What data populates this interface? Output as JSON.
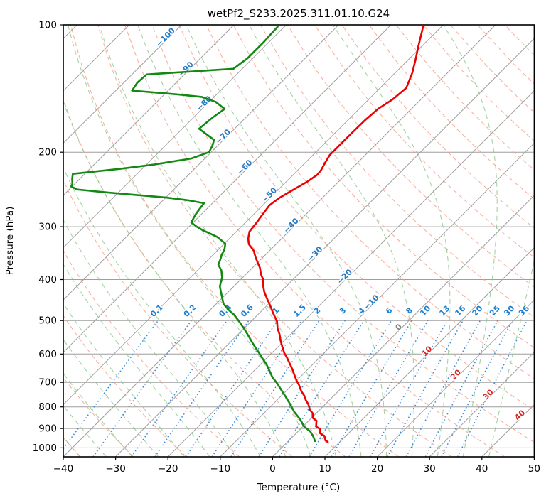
{
  "title": "wetPf2_S233.2025.311.01.10.G24",
  "axes": {
    "x_label": "Temperature (°C)",
    "y_label": "Pressure (hPa)",
    "x_tick_values": [
      -40,
      -30,
      -20,
      -10,
      0,
      10,
      20,
      30,
      40,
      50
    ],
    "x_tick_labels": [
      "−40",
      "−30",
      "−20",
      "−10",
      "0",
      "10",
      "20",
      "30",
      "40",
      "50"
    ],
    "y_tick_values": [
      100,
      200,
      300,
      400,
      500,
      600,
      700,
      800,
      900,
      1000
    ],
    "y_tick_labels": [
      "100",
      "200",
      "300",
      "400",
      "500",
      "600",
      "700",
      "800",
      "900",
      "1000"
    ],
    "x_range_c": [
      -40,
      50
    ],
    "p_range_hpa": [
      100,
      1050
    ],
    "skew_degrees": 45
  },
  "chart_data": {
    "type": "line",
    "plot_kind": "skew-t-log-p-sounding",
    "title": "wetPf2_S233.2025.311.01.10.G24",
    "xlabel": "Temperature (°C)",
    "ylabel": "Pressure (hPa)",
    "series": [
      {
        "name": "temperature",
        "color": "#ed0000",
        "units": {
          "pressure": "hPa",
          "temperature": "C"
        },
        "points": [
          [
            101,
            -53.5
          ],
          [
            113,
            -50.5
          ],
          [
            121,
            -48.6
          ],
          [
            130,
            -46.7
          ],
          [
            141,
            -45.0
          ],
          [
            150,
            -45.4
          ],
          [
            158,
            -46.4
          ],
          [
            168,
            -46.7
          ],
          [
            180,
            -46.8
          ],
          [
            192,
            -46.8
          ],
          [
            203,
            -46.8
          ],
          [
            212,
            -46.2
          ],
          [
            220,
            -45.6
          ],
          [
            226,
            -45.4
          ],
          [
            235,
            -46.0
          ],
          [
            245,
            -47.1
          ],
          [
            256,
            -48.2
          ],
          [
            267,
            -48.7
          ],
          [
            283,
            -48.2
          ],
          [
            295,
            -47.8
          ],
          [
            308,
            -47.5
          ],
          [
            320,
            -46.4
          ],
          [
            330,
            -45.2
          ],
          [
            342,
            -43.0
          ],
          [
            353,
            -41.6
          ],
          [
            364,
            -40.1
          ],
          [
            375,
            -38.6
          ],
          [
            389,
            -37.1
          ],
          [
            400,
            -35.7
          ],
          [
            412,
            -34.7
          ],
          [
            428,
            -33.1
          ],
          [
            443,
            -31.4
          ],
          [
            458,
            -29.7
          ],
          [
            480,
            -27.4
          ],
          [
            503,
            -25.0
          ],
          [
            522,
            -23.6
          ],
          [
            539,
            -22.1
          ],
          [
            559,
            -20.6
          ],
          [
            578,
            -19.1
          ],
          [
            597,
            -17.6
          ],
          [
            612,
            -16.2
          ],
          [
            634,
            -14.4
          ],
          [
            654,
            -12.8
          ],
          [
            671,
            -11.6
          ],
          [
            692,
            -10.1
          ],
          [
            710,
            -8.7
          ],
          [
            734,
            -7.1
          ],
          [
            752,
            -5.7
          ],
          [
            771,
            -4.5
          ],
          [
            789,
            -3.2
          ],
          [
            814,
            -1.8
          ],
          [
            828,
            -0.7
          ],
          [
            849,
            0.2
          ],
          [
            863,
            1.5
          ],
          [
            890,
            2.5
          ],
          [
            903,
            3.8
          ],
          [
            924,
            4.6
          ],
          [
            937,
            5.9
          ],
          [
            961,
            7.0
          ],
          [
            968,
            7.7
          ]
        ]
      },
      {
        "name": "dewpoint",
        "color": "#138813",
        "units": {
          "pressure": "hPa",
          "temperature": "C"
        },
        "points": [
          [
            101,
            -81.3
          ],
          [
            110,
            -81.0
          ],
          [
            120,
            -81.0
          ],
          [
            127,
            -81.7
          ],
          [
            131,
            -97.2
          ],
          [
            137,
            -97.4
          ],
          [
            143,
            -96.9
          ],
          [
            146,
            -87.4
          ],
          [
            148,
            -82.4
          ],
          [
            152,
            -78.8
          ],
          [
            158,
            -75.7
          ],
          [
            165,
            -76.3
          ],
          [
            171,
            -76.6
          ],
          [
            176,
            -76.8
          ],
          [
            181,
            -74.5
          ],
          [
            187,
            -71.8
          ],
          [
            193,
            -71.0
          ],
          [
            200,
            -70.4
          ],
          [
            207,
            -72.6
          ],
          [
            214,
            -78.6
          ],
          [
            219,
            -84.3
          ],
          [
            225,
            -92.3
          ],
          [
            231,
            -91.5
          ],
          [
            238,
            -90.4
          ],
          [
            241,
            -90.2
          ],
          [
            245,
            -88.5
          ],
          [
            249,
            -82.1
          ],
          [
            256,
            -69.9
          ],
          [
            260,
            -65.0
          ],
          [
            264,
            -61.6
          ],
          [
            271,
            -61.4
          ],
          [
            280,
            -61.1
          ],
          [
            293,
            -60.4
          ],
          [
            300,
            -58.5
          ],
          [
            306,
            -56.6
          ],
          [
            317,
            -52.7
          ],
          [
            329,
            -49.8
          ],
          [
            339,
            -48.9
          ],
          [
            349,
            -48.4
          ],
          [
            359,
            -47.7
          ],
          [
            369,
            -47.1
          ],
          [
            381,
            -45.4
          ],
          [
            396,
            -43.9
          ],
          [
            415,
            -42.7
          ],
          [
            433,
            -40.9
          ],
          [
            457,
            -38.6
          ],
          [
            474,
            -36.2
          ],
          [
            484,
            -34.6
          ],
          [
            505,
            -32.0
          ],
          [
            524,
            -29.8
          ],
          [
            543,
            -27.8
          ],
          [
            564,
            -25.7
          ],
          [
            581,
            -24.0
          ],
          [
            598,
            -22.3
          ],
          [
            612,
            -21.0
          ],
          [
            633,
            -19.0
          ],
          [
            654,
            -17.3
          ],
          [
            679,
            -15.4
          ],
          [
            706,
            -13.0
          ],
          [
            739,
            -10.4
          ],
          [
            762,
            -8.6
          ],
          [
            793,
            -6.4
          ],
          [
            823,
            -4.4
          ],
          [
            856,
            -1.9
          ],
          [
            890,
            0.2
          ],
          [
            914,
            2.3
          ],
          [
            935,
            3.6
          ],
          [
            950,
            4.4
          ],
          [
            964,
            5.1
          ]
        ]
      }
    ],
    "background": {
      "pressure_gridlines_hpa": [
        100,
        200,
        300,
        400,
        500,
        600,
        700,
        800,
        900,
        1000
      ],
      "isotherms": {
        "start_c": -140,
        "end_c": 50,
        "step_c": 10,
        "color": "#9e9e9e",
        "label_values": [
          -100,
          -90,
          -80,
          -70,
          -60,
          -50,
          -40,
          -30,
          -20,
          -10,
          0,
          10,
          20,
          30,
          40
        ],
        "label_color_negative": "#2b7bc4",
        "label_color_zero": "#808080",
        "label_color_positive": "#d62728"
      },
      "dry_adiabats": {
        "start_c": -40,
        "end_c": 190,
        "step_c": 10,
        "color": "#f5977f"
      },
      "moist_adiabats": {
        "start_c": -55,
        "end_c": 40,
        "step_c": 5,
        "color": "#8cc88c"
      },
      "mixing_ratio_lines": {
        "values_g_kg": [
          0.1,
          0.2,
          0.4,
          0.6,
          1,
          1.5,
          2,
          3,
          4,
          6,
          8,
          10,
          13,
          16,
          20,
          25,
          30,
          36
        ],
        "line_color": "#2f86d8",
        "label_color": "#1e7fd0",
        "top_pressure_hpa": 500
      }
    }
  }
}
